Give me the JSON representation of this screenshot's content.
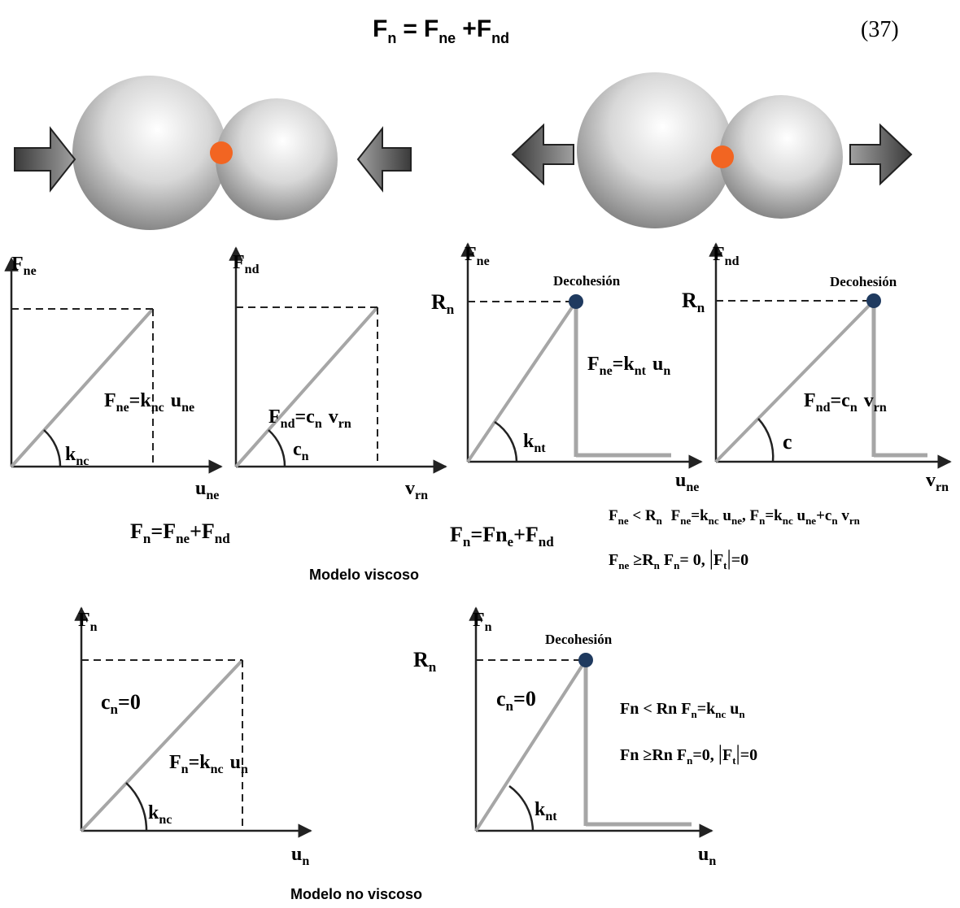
{
  "equation": {
    "lhs": "F",
    "lhs_sub": "n",
    "eq": "=",
    "t1": "F",
    "t1_sub": "ne",
    "plus": "+",
    "t2": "F",
    "t2_sub": "nd",
    "number": "(37)"
  },
  "captions": {
    "viscous": "Modelo viscoso",
    "nonviscous": "Modelo no viscoso"
  },
  "plots": {
    "p1": {
      "y_axis": "F",
      "y_axis_sub": "ne",
      "x_axis": "u",
      "x_axis_sub": "ne",
      "angle": "k",
      "angle_sub": "nc",
      "eq": {
        "a": "F",
        "a_sub": "ne",
        "eq": "=",
        "b": "k",
        "b_sub": "nc",
        "c": "u",
        "c_sub": "ne"
      }
    },
    "p2": {
      "y_axis": "F",
      "y_axis_sub": "nd",
      "x_axis": "v",
      "x_axis_sub": "rn",
      "angle": "c",
      "angle_sub": "n",
      "eq": {
        "a": "F",
        "a_sub": "nd",
        "eq": "=",
        "b": "c",
        "b_sub": "n",
        "c": "v",
        "c_sub": "rn"
      }
    },
    "p3": {
      "y_axis": "F",
      "y_axis_sub": "ne",
      "x_axis": "u",
      "x_axis_sub": "ne",
      "angle": "k",
      "angle_sub": "nt",
      "r": "R",
      "r_sub": "n",
      "decohesion": "Decohesión",
      "eq": {
        "a": "F",
        "a_sub": "ne",
        "eq": "=",
        "b": "k",
        "b_sub": "nt",
        "c": "u",
        "c_sub": "n"
      }
    },
    "p4": {
      "y_axis": "F",
      "y_axis_sub": "nd",
      "x_axis": "v",
      "x_axis_sub": "rn",
      "angle": "c",
      "r": "R",
      "r_sub": "n",
      "decohesion": "Decohesión",
      "eq": {
        "a": "F",
        "a_sub": "nd",
        "eq": "=",
        "b": "c",
        "b_sub": "n",
        "c": "v",
        "c_sub": "rn"
      }
    },
    "p5": {
      "y_axis": "F",
      "y_axis_sub": "n",
      "x_axis": "u",
      "x_axis_sub": "n",
      "angle": "k",
      "angle_sub": "nc",
      "cn_label": "c",
      "cn_sub": "n",
      "cn_val": "=0",
      "eq": {
        "a": "F",
        "a_sub": "n",
        "eq": "=",
        "b": "k",
        "b_sub": "nc",
        "c": "u",
        "c_sub": "n"
      }
    },
    "p6": {
      "y_axis": "F",
      "y_axis_sub": "n",
      "x_axis": "u",
      "x_axis_sub": "n",
      "angle": "k",
      "angle_sub": "nt",
      "r": "R",
      "r_sub": "n",
      "decohesion": "Decohesión",
      "cn_label": "c",
      "cn_sub": "n",
      "cn_val": "=0"
    }
  },
  "formulas": {
    "viscous_sum": {
      "a": "F",
      "a_sub": "n",
      "eq": "=",
      "b": "F",
      "b_sub": "ne",
      "plus": "+",
      "c": "F",
      "c_sub": "nd"
    },
    "viscous_sum2": {
      "a": "F",
      "a_sub": "n",
      "eq": "=",
      "b": "Fn",
      "b_sub": "e",
      "plus": "+",
      "c": "F",
      "c_sub": "nd"
    },
    "cond1": {
      "a": "F",
      "a_sub": "ne",
      "lt": " < ",
      "b": "R",
      "b_sub": "n",
      "c": "  F",
      "c_sub": "ne",
      "d": "=k",
      "d_sub": "nc",
      "e": " u",
      "e_sub": "ne",
      "f": ", F",
      "f_sub": "n",
      "g": "=k",
      "g_sub": "nc",
      "h": " u",
      "h_sub": "ne",
      "i": "+c",
      "i_sub": "n",
      "j": " v",
      "j_sub": "rn"
    },
    "cond2": {
      "a": "F",
      "a_sub": "ne",
      "b": " ≥R",
      "b_sub": "n",
      "c": " F",
      "c_sub": "n",
      "d": "= 0,  ",
      "bar1": "|",
      "e": "F",
      "e_sub": "t",
      "bar2": "|",
      "f": "=0"
    },
    "cond3": {
      "a": "Fn < Rn  F",
      "a_sub": "n",
      "b": "=k",
      "b_sub": "nc",
      "c": " u",
      "c_sub": "n"
    },
    "cond4": {
      "a": "Fn ≥Rn F",
      "a_sub": "n",
      "b": "=0,  ",
      "bar1": "|",
      "c": "F",
      "c_sub": "t",
      "bar2": "|",
      "d": "=0"
    }
  },
  "colors": {
    "sphere_dark": "#6e6e6e",
    "sphere_light": "#f2f2f2",
    "contact_point": "#f26522",
    "decohesion_point": "#1f3a5f",
    "force_line": "#a6a6a6",
    "axis": "#222222"
  }
}
